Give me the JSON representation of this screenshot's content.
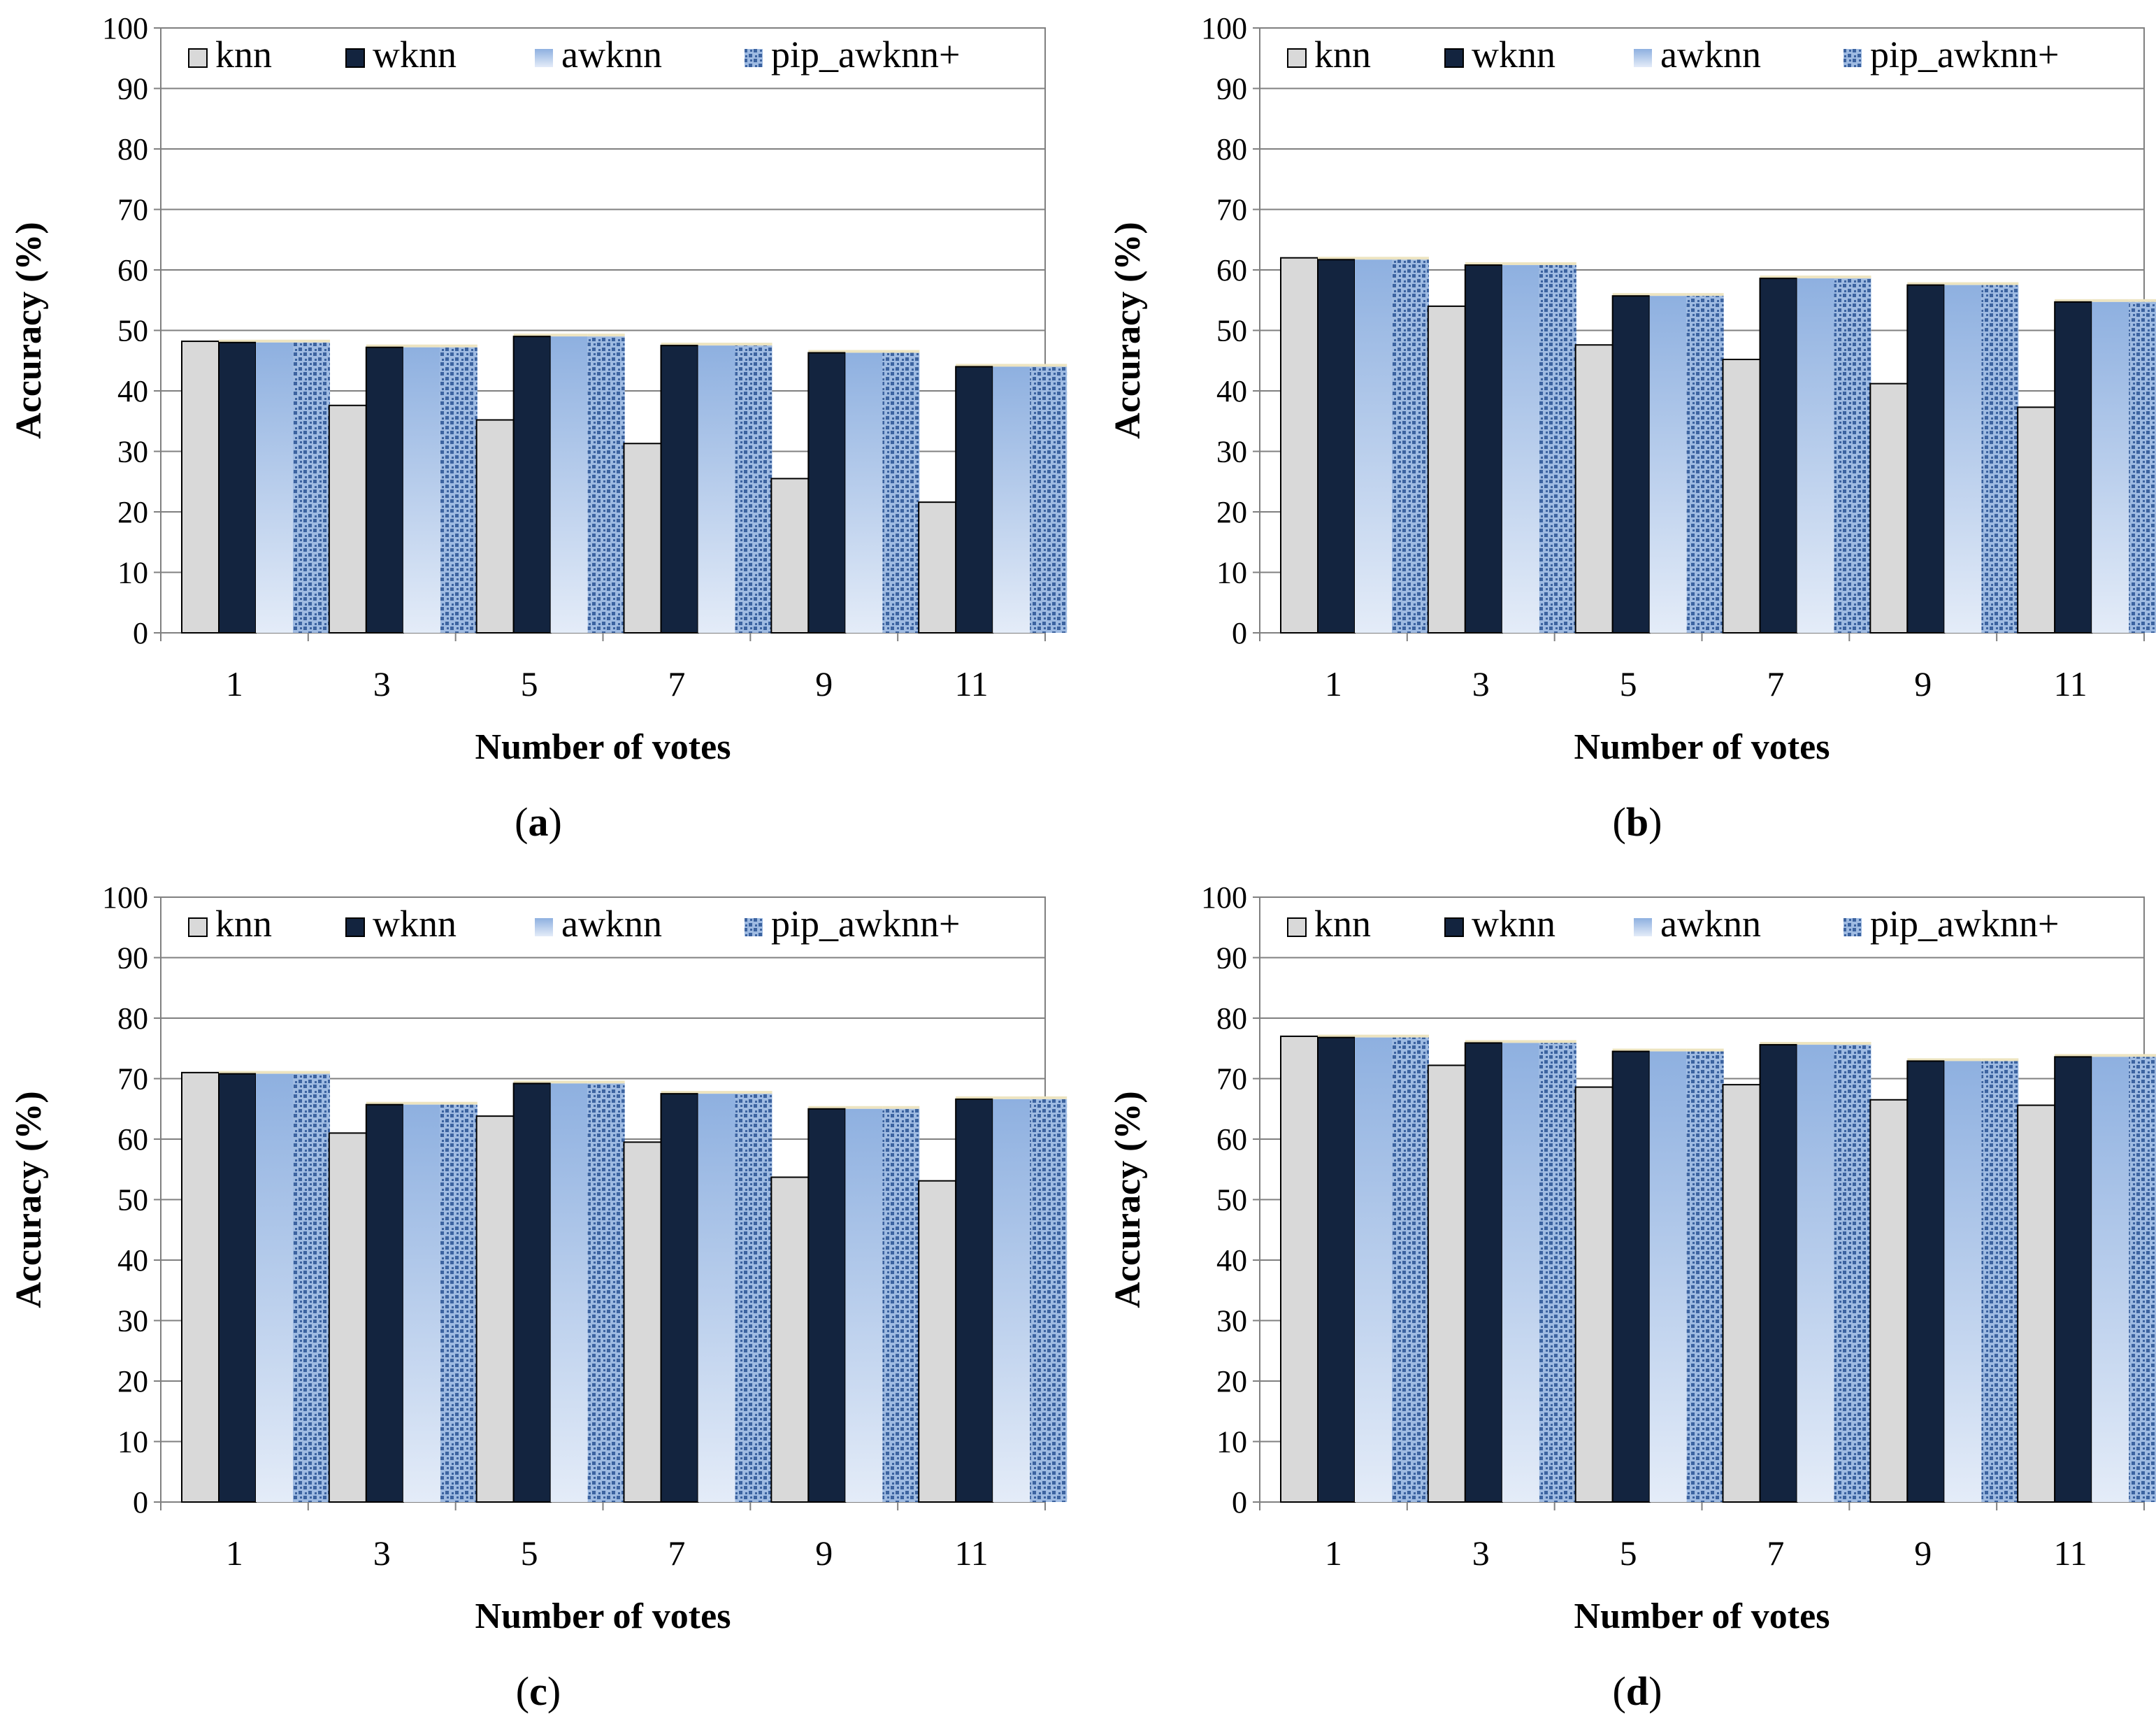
{
  "figure": {
    "colors": {
      "knn": "#d9d9d9",
      "wknn": "#13243f",
      "awknn_top": "#8eb0e0",
      "awknn_bottom": "#e4ecf8",
      "pip_dark": "#3c63a0",
      "pip_light": "#9fbbe2",
      "grid": "#808080",
      "axis": "#808080"
    }
  },
  "chart_data": [
    {
      "panel_label": "(a)",
      "panel_letter": "a",
      "type": "bar",
      "xlabel": "Number of votes",
      "ylabel": "Accuracy (%)",
      "ylim": [
        0,
        100
      ],
      "yticks": [
        "0",
        "10",
        "20",
        "30",
        "40",
        "50",
        "60",
        "70",
        "80",
        "90",
        "100"
      ],
      "categories": [
        "1",
        "3",
        "5",
        "7",
        "9",
        "11"
      ],
      "legend": [
        "knn",
        "wknn",
        "awknn",
        "pip_awknn+"
      ],
      "series": [
        {
          "name": "knn",
          "values": [
            48.2,
            37.6,
            35.2,
            31.3,
            25.5,
            21.6
          ]
        },
        {
          "name": "wknn",
          "values": [
            48.0,
            47.2,
            49.0,
            47.5,
            46.3,
            44.0
          ]
        },
        {
          "name": "awknn",
          "values": [
            48.0,
            47.2,
            49.0,
            47.5,
            46.3,
            44.0
          ]
        },
        {
          "name": "pip_awknn+",
          "values": [
            48.0,
            47.2,
            49.0,
            47.5,
            46.3,
            44.0
          ]
        }
      ]
    },
    {
      "panel_label": "(b)",
      "panel_letter": "b",
      "type": "bar",
      "xlabel": "Number of votes",
      "ylabel": "Accuracy (%)",
      "ylim": [
        0,
        100
      ],
      "yticks": [
        "0",
        "10",
        "20",
        "30",
        "40",
        "50",
        "60",
        "70",
        "80",
        "90",
        "100"
      ],
      "categories": [
        "1",
        "3",
        "5",
        "7",
        "9",
        "11"
      ],
      "legend": [
        "knn",
        "wknn",
        "awknn",
        "pip_awknn+"
      ],
      "series": [
        {
          "name": "knn",
          "values": [
            62.0,
            54.0,
            47.6,
            45.2,
            41.2,
            37.3
          ]
        },
        {
          "name": "wknn",
          "values": [
            61.7,
            60.8,
            55.7,
            58.6,
            57.5,
            54.7
          ]
        },
        {
          "name": "awknn",
          "values": [
            61.7,
            60.8,
            55.7,
            58.6,
            57.5,
            54.7
          ]
        },
        {
          "name": "pip_awknn+",
          "values": [
            61.7,
            60.8,
            55.7,
            58.6,
            57.5,
            54.7
          ]
        }
      ]
    },
    {
      "panel_label": "(c)",
      "panel_letter": "c",
      "type": "bar",
      "xlabel": "Number of votes",
      "ylabel": "Accuracy (%)",
      "ylim": [
        0,
        100
      ],
      "yticks": [
        "0",
        "10",
        "20",
        "30",
        "40",
        "50",
        "60",
        "70",
        "80",
        "90",
        "100"
      ],
      "categories": [
        "1",
        "3",
        "5",
        "7",
        "9",
        "11"
      ],
      "legend": [
        "knn",
        "wknn",
        "awknn",
        "pip_awknn+"
      ],
      "series": [
        {
          "name": "knn",
          "values": [
            71.0,
            61.0,
            63.8,
            59.5,
            53.7,
            53.1
          ]
        },
        {
          "name": "wknn",
          "values": [
            70.8,
            65.7,
            69.2,
            67.5,
            65.0,
            66.6
          ]
        },
        {
          "name": "awknn",
          "values": [
            70.8,
            65.7,
            69.2,
            67.5,
            65.0,
            66.6
          ]
        },
        {
          "name": "pip_awknn+",
          "values": [
            70.8,
            65.7,
            69.2,
            67.5,
            65.0,
            66.6
          ]
        }
      ]
    },
    {
      "panel_label": "(d)",
      "panel_letter": "d",
      "type": "bar",
      "xlabel": "Number of votes",
      "ylabel": "Accuracy (%)",
      "ylim": [
        0,
        100
      ],
      "yticks": [
        "0",
        "10",
        "20",
        "30",
        "40",
        "50",
        "60",
        "70",
        "80",
        "90",
        "100"
      ],
      "categories": [
        "1",
        "3",
        "5",
        "7",
        "9",
        "11"
      ],
      "legend": [
        "knn",
        "wknn",
        "awknn",
        "pip_awknn+"
      ],
      "series": [
        {
          "name": "knn",
          "values": [
            77.0,
            72.2,
            68.6,
            69.0,
            66.5,
            65.6
          ]
        },
        {
          "name": "wknn",
          "values": [
            76.8,
            75.9,
            74.5,
            75.6,
            72.9,
            73.6
          ]
        },
        {
          "name": "awknn",
          "values": [
            76.8,
            75.9,
            74.5,
            75.6,
            72.9,
            73.6
          ]
        },
        {
          "name": "pip_awknn+",
          "values": [
            76.8,
            75.9,
            74.5,
            75.6,
            72.9,
            73.6
          ]
        }
      ]
    }
  ]
}
